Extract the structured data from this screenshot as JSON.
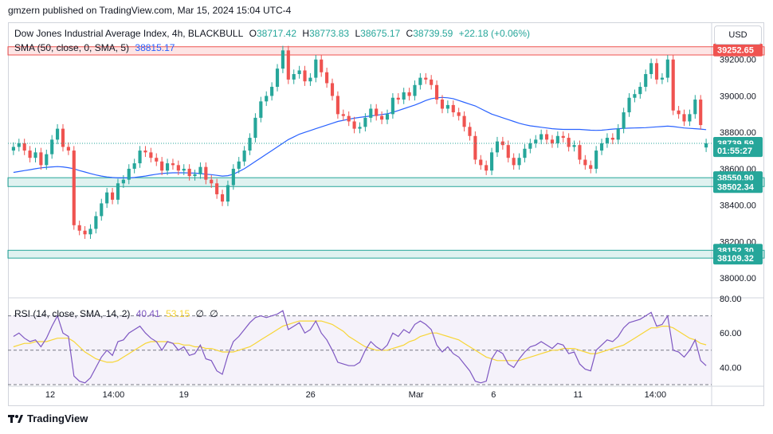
{
  "header": {
    "published": "gmzern published on TradingView.com, Mar 15, 2024 15:04 UTC-4"
  },
  "legend": {
    "title": "Dow Jones Industrial Average Index, 4h, BLACKBULL",
    "o_label": "O",
    "o_value": "38717.42",
    "h_label": "H",
    "h_value": "38773.83",
    "l_label": "L",
    "l_value": "38675.17",
    "c_label": "C",
    "c_value": "38739.59",
    "change": "+22.18 (+0.06%)",
    "sma_label": "SMA (50, close, 0, SMA, 5)",
    "sma_value": "38815.17",
    "rsi_label": "RSI (14, close, SMA, 14, 2)",
    "rsi_value": "40.41",
    "rsi_ma_value": "53.15",
    "rsi_na1": "∅",
    "rsi_na2": "∅"
  },
  "usd_button": "USD",
  "footer": {
    "brand": "TradingView"
  },
  "colors": {
    "up": "#26a69a",
    "down": "#ef5350",
    "sma": "#2962ff",
    "rsi": "#7e57c2",
    "rsi_ma": "#f7d535"
  },
  "chart_data": {
    "type": "candlestick",
    "price_axis": {
      "ylim": [
        37900,
        39400
      ],
      "ticks": [
        "39200.00",
        "39000.00",
        "38800.00",
        "38600.00",
        "38400.00",
        "38200.00",
        "38000.00"
      ]
    },
    "time_axis": {
      "ticks": [
        "12",
        "14:00",
        "19",
        "26",
        "Mar",
        "6",
        "11",
        "14:00"
      ]
    },
    "price_labels": [
      {
        "text": "39252.65",
        "color": "#ef5350"
      },
      {
        "text": "38739.59",
        "color": "#26a69a"
      },
      {
        "text": "01:55:27",
        "color": "#26a69a"
      },
      {
        "text": "38550.90",
        "color": "#26a69a"
      },
      {
        "text": "38502.34",
        "color": "#26a69a"
      },
      {
        "text": "38152.30",
        "color": "#26a69a"
      },
      {
        "text": "38109.32",
        "color": "#26a69a"
      }
    ],
    "zones": [
      {
        "name": "resistance",
        "top": 39270,
        "bottom": 39225,
        "color": "#ef5350"
      },
      {
        "name": "support-1",
        "top": 38550.9,
        "bottom": 38502.34,
        "color": "#26a69a"
      },
      {
        "name": "support-2",
        "top": 38152.3,
        "bottom": 38109.32,
        "color": "#26a69a"
      }
    ],
    "close": [
      38720,
      38740,
      38700,
      38660,
      38690,
      38620,
      38680,
      38760,
      38820,
      38720,
      38700,
      38290,
      38260,
      38240,
      38270,
      38340,
      38410,
      38470,
      38430,
      38520,
      38540,
      38600,
      38630,
      38700,
      38690,
      38660,
      38640,
      38590,
      38630,
      38620,
      38590,
      38600,
      38560,
      38570,
      38610,
      38540,
      38520,
      38460,
      38420,
      38510,
      38600,
      38640,
      38700,
      38770,
      38880,
      38970,
      39000,
      39050,
      39150,
      39250,
      39090,
      39120,
      39140,
      39080,
      39100,
      39200,
      39130,
      39070,
      39000,
      38900,
      38890,
      38860,
      38820,
      38830,
      38880,
      38930,
      38890,
      38870,
      38900,
      38990,
      38980,
      39020,
      39000,
      39060,
      39100,
      39090,
      39060,
      38980,
      38930,
      38950,
      38910,
      38890,
      38830,
      38780,
      38650,
      38620,
      38590,
      38690,
      38750,
      38730,
      38660,
      38620,
      38660,
      38710,
      38740,
      38760,
      38790,
      38760,
      38740,
      38780,
      38770,
      38720,
      38730,
      38650,
      38620,
      38600,
      38700,
      38740,
      38770,
      38760,
      38820,
      38910,
      38990,
      39010,
      39050,
      39120,
      39180,
      39090,
      39100,
      39200,
      38920,
      38900,
      38860,
      38900,
      38980,
      38840,
      38740
    ],
    "open": [
      38700,
      38720,
      38740,
      38700,
      38660,
      38690,
      38620,
      38680,
      38760,
      38820,
      38720,
      38700,
      38290,
      38260,
      38240,
      38270,
      38340,
      38410,
      38470,
      38430,
      38520,
      38540,
      38600,
      38630,
      38700,
      38690,
      38660,
      38640,
      38590,
      38630,
      38620,
      38590,
      38600,
      38560,
      38570,
      38610,
      38540,
      38520,
      38460,
      38420,
      38510,
      38600,
      38640,
      38700,
      38770,
      38880,
      38970,
      39000,
      39050,
      39150,
      39250,
      39090,
      39120,
      39140,
      39080,
      39100,
      39200,
      39130,
      39070,
      39000,
      38900,
      38890,
      38860,
      38820,
      38830,
      38880,
      38930,
      38890,
      38870,
      38900,
      38990,
      38980,
      39020,
      39000,
      39060,
      39100,
      39090,
      39060,
      38980,
      38930,
      38950,
      38910,
      38890,
      38830,
      38780,
      38650,
      38620,
      38590,
      38690,
      38750,
      38730,
      38660,
      38620,
      38660,
      38710,
      38740,
      38760,
      38790,
      38760,
      38740,
      38780,
      38770,
      38720,
      38730,
      38650,
      38620,
      38600,
      38700,
      38740,
      38770,
      38760,
      38820,
      38910,
      38990,
      39010,
      39050,
      39120,
      39180,
      39090,
      39100,
      39200,
      38920,
      38900,
      38860,
      38900,
      38980,
      38717
    ],
    "sma": [
      38580,
      38585,
      38590,
      38595,
      38600,
      38605,
      38608,
      38610,
      38612,
      38610,
      38606,
      38600,
      38590,
      38582,
      38574,
      38566,
      38560,
      38555,
      38552,
      38550,
      38550,
      38550,
      38552,
      38556,
      38560,
      38565,
      38570,
      38574,
      38576,
      38578,
      38578,
      38578,
      38577,
      38576,
      38574,
      38570,
      38568,
      38564,
      38560,
      38562,
      38570,
      38585,
      38600,
      38620,
      38640,
      38660,
      38680,
      38700,
      38720,
      38740,
      38760,
      38775,
      38790,
      38800,
      38810,
      38820,
      38830,
      38840,
      38850,
      38860,
      38866,
      38872,
      38878,
      38882,
      38886,
      38890,
      38894,
      38898,
      38902,
      38910,
      38920,
      38930,
      38940,
      38950,
      38962,
      38975,
      38985,
      38990,
      38992,
      38990,
      38985,
      38975,
      38965,
      38955,
      38945,
      38930,
      38915,
      38900,
      38890,
      38880,
      38870,
      38860,
      38850,
      38842,
      38836,
      38832,
      38828,
      38824,
      38820,
      38818,
      38816,
      38816,
      38816,
      38816,
      38814,
      38812,
      38811,
      38812,
      38815,
      38818,
      38820,
      38822,
      38823,
      38824,
      38825,
      38826,
      38828,
      38830,
      38832,
      38834,
      38832,
      38828,
      38824,
      38822,
      38820,
      38818,
      38815
    ],
    "rsi": {
      "ylim": [
        30,
        80
      ],
      "ticks": [
        "80.00",
        "60.00",
        "40.00"
      ],
      "bands": [
        70,
        50,
        30
      ],
      "rsi_values": [
        58,
        60,
        57,
        55,
        56,
        52,
        57,
        64,
        70,
        60,
        58,
        35,
        32,
        31,
        34,
        40,
        46,
        50,
        47,
        55,
        56,
        60,
        62,
        64,
        60,
        57,
        55,
        50,
        55,
        54,
        50,
        52,
        47,
        48,
        53,
        45,
        44,
        38,
        36,
        47,
        55,
        58,
        62,
        66,
        69,
        70,
        69,
        70,
        71,
        73,
        62,
        64,
        66,
        60,
        62,
        67,
        60,
        56,
        50,
        43,
        42,
        41,
        41,
        43,
        50,
        55,
        52,
        50,
        53,
        60,
        58,
        62,
        60,
        65,
        67,
        65,
        62,
        53,
        49,
        52,
        48,
        46,
        42,
        38,
        32,
        31,
        32,
        45,
        50,
        48,
        42,
        40,
        45,
        49,
        52,
        53,
        55,
        53,
        51,
        54,
        53,
        48,
        49,
        42,
        39,
        38,
        50,
        53,
        56,
        55,
        58,
        63,
        66,
        67,
        68,
        70,
        72,
        64,
        65,
        70,
        50,
        49,
        46,
        50,
        56,
        44,
        41
      ],
      "ma_values": [
        52,
        53,
        54,
        54,
        55,
        55,
        55,
        56,
        57,
        57,
        57,
        55,
        52,
        49,
        47,
        45,
        44,
        43,
        43,
        44,
        46,
        48,
        50,
        52,
        54,
        55,
        55,
        55,
        55,
        54,
        54,
        53,
        53,
        52,
        52,
        51,
        51,
        50,
        49,
        49,
        49,
        50,
        51,
        52,
        54,
        56,
        58,
        60,
        62,
        64,
        65,
        66,
        67,
        67,
        67,
        67,
        67,
        66,
        65,
        63,
        61,
        58,
        56,
        54,
        52,
        51,
        50,
        50,
        50,
        51,
        52,
        53,
        55,
        56,
        58,
        59,
        60,
        60,
        59,
        58,
        57,
        56,
        54,
        52,
        50,
        48,
        46,
        45,
        44,
        44,
        44,
        44,
        44,
        45,
        46,
        47,
        48,
        49,
        50,
        50,
        51,
        51,
        51,
        50,
        49,
        48,
        48,
        49,
        50,
        51,
        52,
        53,
        55,
        57,
        59,
        61,
        63,
        63,
        64,
        64,
        63,
        61,
        59,
        57,
        56,
        54,
        53.15
      ]
    }
  }
}
